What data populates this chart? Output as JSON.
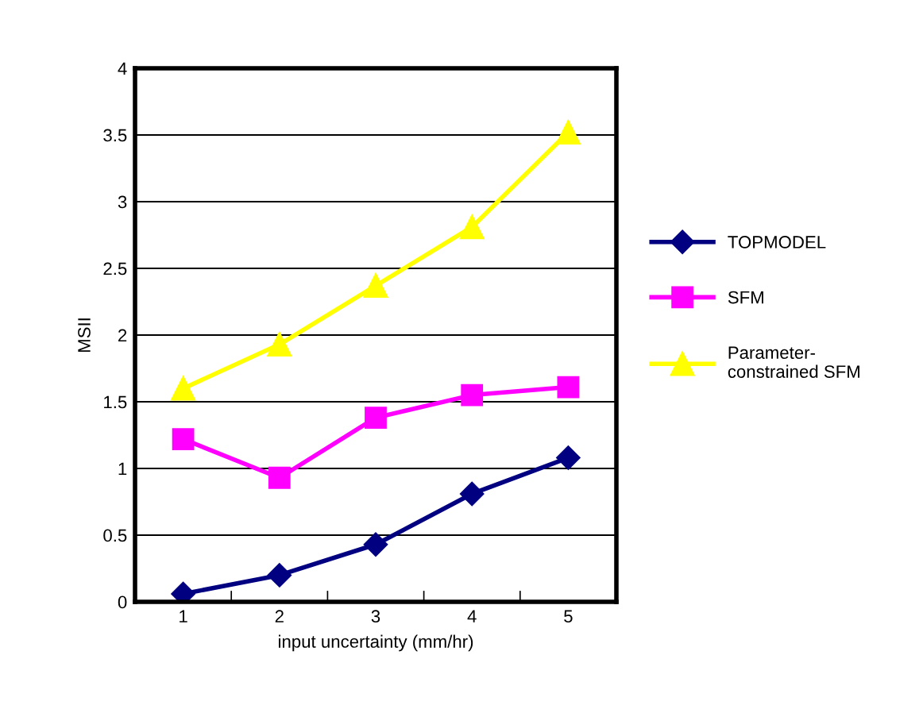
{
  "chart_data": {
    "type": "line",
    "xlabel": "input uncertainty (mm/hr)",
    "ylabel": "MSII",
    "categories": [
      "1",
      "2",
      "3",
      "4",
      "5"
    ],
    "series": [
      {
        "name": "TOPMODEL",
        "color": "#000080",
        "marker": "diamond",
        "values": [
          0.06,
          0.2,
          0.43,
          0.81,
          1.08
        ]
      },
      {
        "name": "SFM",
        "color": "#ff00ff",
        "marker": "square",
        "values": [
          1.22,
          0.93,
          1.38,
          1.55,
          1.61
        ]
      },
      {
        "name": "Parameter-\nconstrained SFM",
        "color": "#ffff00",
        "marker": "triangle",
        "values": [
          1.6,
          1.93,
          2.37,
          2.81,
          3.52
        ]
      }
    ],
    "ylim": [
      0,
      4
    ],
    "yticks": [
      0,
      0.5,
      1,
      1.5,
      2,
      2.5,
      3,
      3.5,
      4
    ],
    "grid": "y",
    "legend": "right",
    "line_style": "solid"
  }
}
